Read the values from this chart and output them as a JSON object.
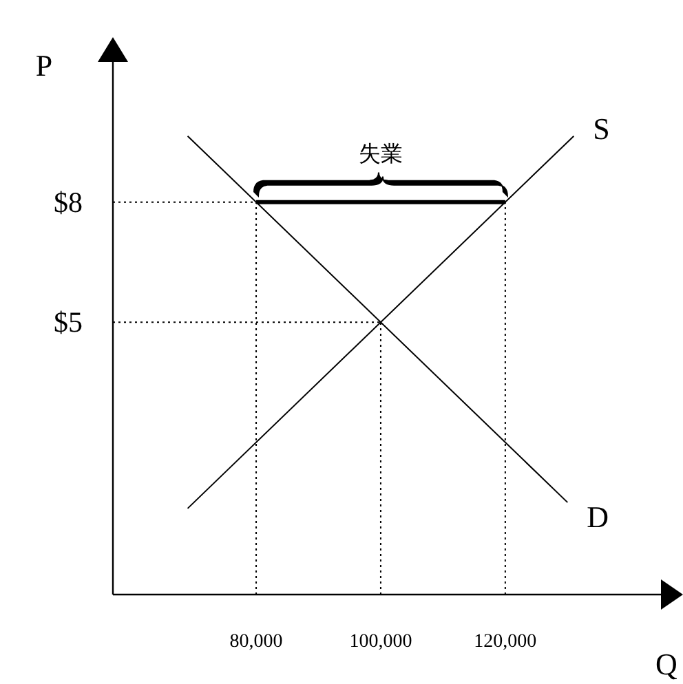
{
  "chart_data": {
    "type": "line",
    "xlabel": "Q",
    "ylabel": "P",
    "xlim": [
      57000,
      145000
    ],
    "ylim": [
      -1.8,
      11.5
    ],
    "xticks": [
      {
        "value": 80000,
        "label": "80,000"
      },
      {
        "value": 100000,
        "label": "100,000"
      },
      {
        "value": 120000,
        "label": "120,000"
      }
    ],
    "yticks": [
      {
        "value": 5,
        "label": "$5"
      },
      {
        "value": 8,
        "label": "$8"
      }
    ],
    "series": [
      {
        "name": "D",
        "color": "#000000",
        "x": [
          69000,
          130000
        ],
        "values": [
          9.65,
          0.5
        ]
      },
      {
        "name": "S",
        "color": "#000000",
        "x": [
          69000,
          131000
        ],
        "values": [
          0.35,
          9.65
        ]
      },
      {
        "color": "#000000",
        "x": [
          80000,
          120000
        ],
        "values": [
          8,
          8
        ]
      }
    ],
    "ref_lines": [
      {
        "axis": "y",
        "value": 8,
        "line_style": "dotted"
      },
      {
        "axis": "y",
        "value": 5,
        "line_style": "dotted"
      },
      {
        "axis": "x",
        "value": 80000,
        "line_style": "dotted"
      },
      {
        "axis": "x",
        "value": 100000,
        "line_style": "dotted"
      },
      {
        "axis": "x",
        "value": 120000,
        "line_style": "dotted"
      }
    ],
    "annotations": [
      {
        "text": "失業",
        "x": 100000,
        "y": 8
      }
    ],
    "grid": false,
    "marker": "none",
    "line_style": "solid"
  }
}
